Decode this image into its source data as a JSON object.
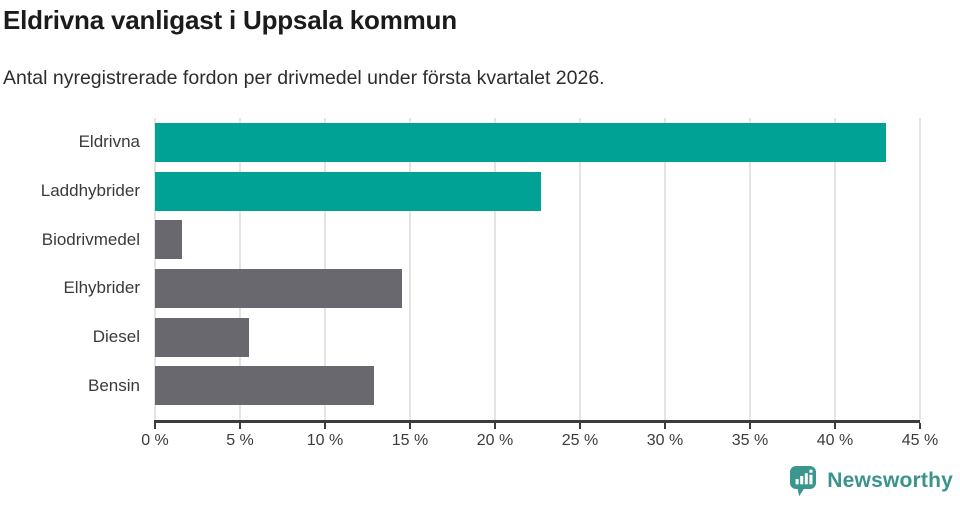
{
  "header": {
    "title": "Eldrivna vanligast i Uppsala kommun",
    "subtitle": "Antal nyregistrerade fordon per drivmedel under första kvartalet 2026."
  },
  "chart_data": {
    "type": "bar",
    "orientation": "horizontal",
    "title": "Eldrivna vanligast i Uppsala kommun",
    "subtitle": "Antal nyregistrerade fordon per drivmedel under första kvartalet 2026.",
    "categories": [
      "Eldrivna",
      "Laddhybrider",
      "Biodrivmedel",
      "Elhybrider",
      "Diesel",
      "Bensin"
    ],
    "values": [
      43.0,
      22.7,
      1.6,
      14.5,
      5.5,
      12.9
    ],
    "unit": "%",
    "highlighted": [
      true,
      true,
      false,
      false,
      false,
      false
    ],
    "xlim": [
      0,
      45
    ],
    "x_tick_values": [
      0,
      5,
      10,
      15,
      20,
      25,
      30,
      35,
      40,
      45
    ],
    "x_tick_labels": [
      "0 %",
      "5 %",
      "10 %",
      "15 %",
      "20 %",
      "25 %",
      "30 %",
      "35 %",
      "40 %",
      "45 %"
    ],
    "grid": true,
    "legend": "none",
    "colors": {
      "highlight": "#00a296",
      "neutral": "#68686e",
      "gridline": "#e4e4e4",
      "axis": "#3c3c3c"
    }
  },
  "footer": {
    "brand": "Newsworthy",
    "logo_icon": "bar-chart-speech-bubble-icon",
    "brand_color": "#3a948c"
  }
}
